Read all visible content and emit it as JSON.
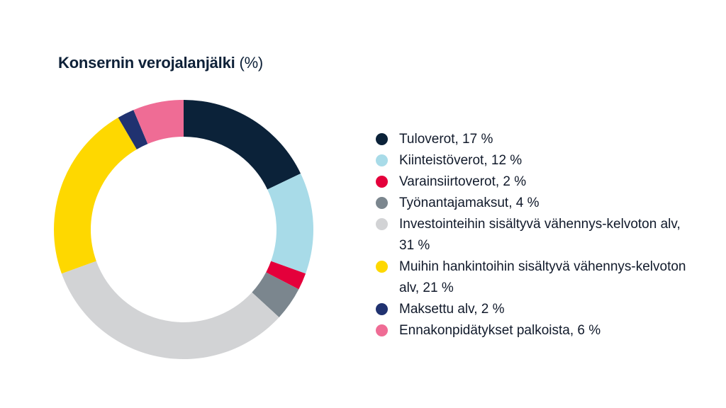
{
  "chart_data": {
    "type": "pie",
    "title": "Konsernin verojalanjälki",
    "title_unit": "(%)",
    "donut": true,
    "legend_position": "right",
    "slices": [
      {
        "label": "Tuloverot, 17 %",
        "value": 17,
        "color": "#0b2239"
      },
      {
        "label": "Kiinteistöverot, 12 %",
        "value": 12,
        "color": "#a8dbe8"
      },
      {
        "label": "Varainsiirtoverot, 2 %",
        "value": 2,
        "color": "#e4003b"
      },
      {
        "label": "Työnantajamaksut, 4 %",
        "value": 4,
        "color": "#7b868e"
      },
      {
        "label": "Investointeihin sisältyvä vähennys-kelvoton alv, 31 %",
        "value": 31,
        "color": "#d2d3d5"
      },
      {
        "label": "Muihin hankintoihin sisältyvä vähennys-kelvoton alv, 21 %",
        "value": 21,
        "color": "#fed800"
      },
      {
        "label": "Maksettu alv, 2 %",
        "value": 2,
        "color": "#203270"
      },
      {
        "label": "Ennakonpidätykset palkoista, 6 %",
        "value": 6,
        "color": "#ef6c95"
      }
    ]
  }
}
